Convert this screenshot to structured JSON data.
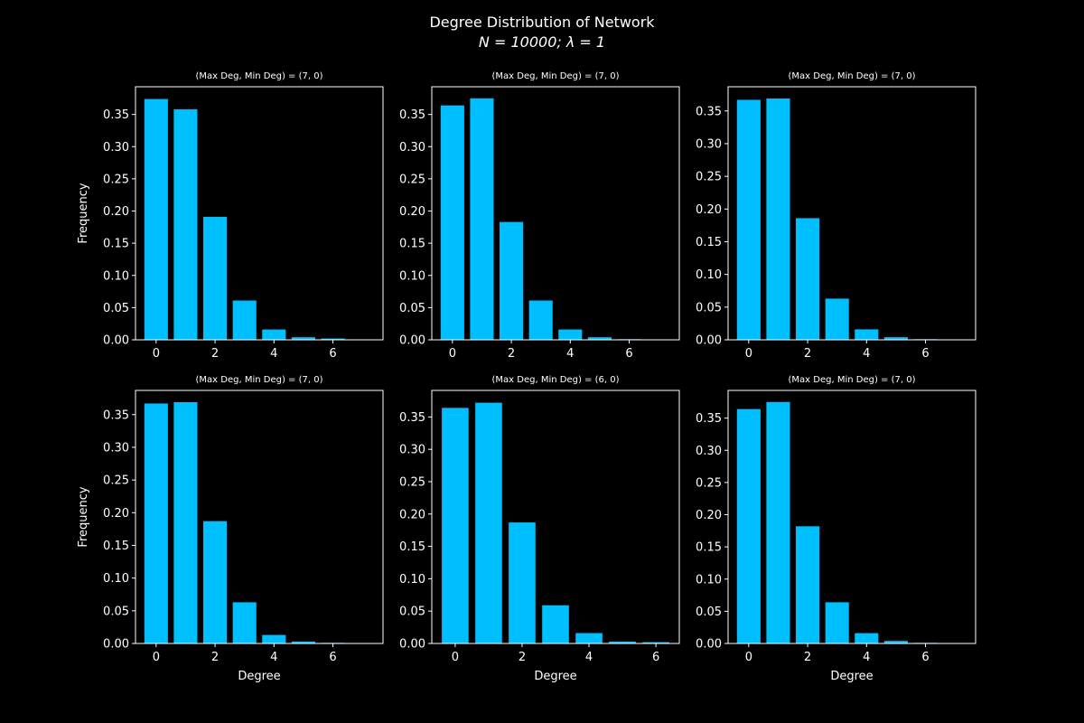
{
  "figure": {
    "title_line1": "Degree Distribution of Network",
    "title_line2": "N = 10000; λ = 1",
    "background": "#000000",
    "foreground": "#ffffff",
    "bar_color": "#00bfff"
  },
  "chart_data": [
    {
      "type": "bar",
      "title": "(Max Deg, Min Deg) = (7, 0)",
      "xlabel": "",
      "ylabel": "Frequency",
      "x": [
        0,
        1,
        2,
        3,
        4,
        5,
        6,
        7
      ],
      "values": [
        0.374,
        0.358,
        0.191,
        0.061,
        0.016,
        0.004,
        0.002,
        0.0001
      ],
      "xlim": [
        -0.7,
        7.7
      ],
      "ylim": [
        0,
        0.393
      ],
      "xticks": [
        0,
        2,
        4,
        6
      ],
      "yticks": [
        0.0,
        0.05,
        0.1,
        0.15,
        0.2,
        0.25,
        0.3,
        0.35
      ],
      "ytick_labels": [
        "0.00",
        "0.05",
        "0.10",
        "0.15",
        "0.20",
        "0.25",
        "0.30",
        "0.35"
      ]
    },
    {
      "type": "bar",
      "title": "(Max Deg, Min Deg) = (7, 0)",
      "xlabel": "",
      "ylabel": "",
      "x": [
        0,
        1,
        2,
        3,
        4,
        5,
        6,
        7
      ],
      "values": [
        0.364,
        0.375,
        0.183,
        0.061,
        0.016,
        0.004,
        0.001,
        0.0001
      ],
      "xlim": [
        -0.7,
        7.7
      ],
      "ylim": [
        0,
        0.393
      ],
      "xticks": [
        0,
        2,
        4,
        6
      ],
      "yticks": [
        0.0,
        0.05,
        0.1,
        0.15,
        0.2,
        0.25,
        0.3,
        0.35
      ],
      "ytick_labels": [
        "0.00",
        "0.05",
        "0.10",
        "0.15",
        "0.20",
        "0.25",
        "0.30",
        "0.35"
      ]
    },
    {
      "type": "bar",
      "title": "(Max Deg, Min Deg) = (7, 0)",
      "xlabel": "",
      "ylabel": "",
      "x": [
        0,
        1,
        2,
        3,
        4,
        5,
        6,
        7
      ],
      "values": [
        0.367,
        0.369,
        0.186,
        0.063,
        0.016,
        0.004,
        0.001,
        0.0001
      ],
      "xlim": [
        -0.7,
        7.7
      ],
      "ylim": [
        0,
        0.387
      ],
      "xticks": [
        0,
        2,
        4,
        6
      ],
      "yticks": [
        0.0,
        0.05,
        0.1,
        0.15,
        0.2,
        0.25,
        0.3,
        0.35
      ],
      "ytick_labels": [
        "0.00",
        "0.05",
        "0.10",
        "0.15",
        "0.20",
        "0.25",
        "0.30",
        "0.35"
      ]
    },
    {
      "type": "bar",
      "title": "(Max Deg, Min Deg) = (7, 0)",
      "xlabel": "Degree",
      "ylabel": "Frequency",
      "x": [
        0,
        1,
        2,
        3,
        4,
        5,
        6,
        7
      ],
      "values": [
        0.367,
        0.369,
        0.187,
        0.063,
        0.013,
        0.003,
        0.001,
        0.0001
      ],
      "xlim": [
        -0.7,
        7.7
      ],
      "ylim": [
        0,
        0.387
      ],
      "xticks": [
        0,
        2,
        4,
        6
      ],
      "yticks": [
        0.0,
        0.05,
        0.1,
        0.15,
        0.2,
        0.25,
        0.3,
        0.35
      ],
      "ytick_labels": [
        "0.00",
        "0.05",
        "0.10",
        "0.15",
        "0.20",
        "0.25",
        "0.30",
        "0.35"
      ]
    },
    {
      "type": "bar",
      "title": "(Max Deg, Min Deg) = (6, 0)",
      "xlabel": "Degree",
      "ylabel": "",
      "x": [
        0,
        1,
        2,
        3,
        4,
        5,
        6
      ],
      "values": [
        0.364,
        0.372,
        0.187,
        0.059,
        0.016,
        0.003,
        0.002
      ],
      "xlim": [
        -0.7,
        6.7
      ],
      "ylim": [
        0,
        0.391
      ],
      "xticks": [
        0,
        2,
        4,
        6
      ],
      "yticks": [
        0.0,
        0.05,
        0.1,
        0.15,
        0.2,
        0.25,
        0.3,
        0.35
      ],
      "ytick_labels": [
        "0.00",
        "0.05",
        "0.10",
        "0.15",
        "0.20",
        "0.25",
        "0.30",
        "0.35"
      ]
    },
    {
      "type": "bar",
      "title": "(Max Deg, Min Deg) = (7, 0)",
      "xlabel": "Degree",
      "ylabel": "",
      "x": [
        0,
        1,
        2,
        3,
        4,
        5,
        6,
        7
      ],
      "values": [
        0.364,
        0.375,
        0.182,
        0.064,
        0.016,
        0.004,
        0.001,
        0.0001
      ],
      "xlim": [
        -0.7,
        7.7
      ],
      "ylim": [
        0,
        0.393
      ],
      "xticks": [
        0,
        2,
        4,
        6
      ],
      "yticks": [
        0.0,
        0.05,
        0.1,
        0.15,
        0.2,
        0.25,
        0.3,
        0.35
      ],
      "ytick_labels": [
        "0.00",
        "0.05",
        "0.10",
        "0.15",
        "0.20",
        "0.25",
        "0.30",
        "0.35"
      ]
    }
  ]
}
